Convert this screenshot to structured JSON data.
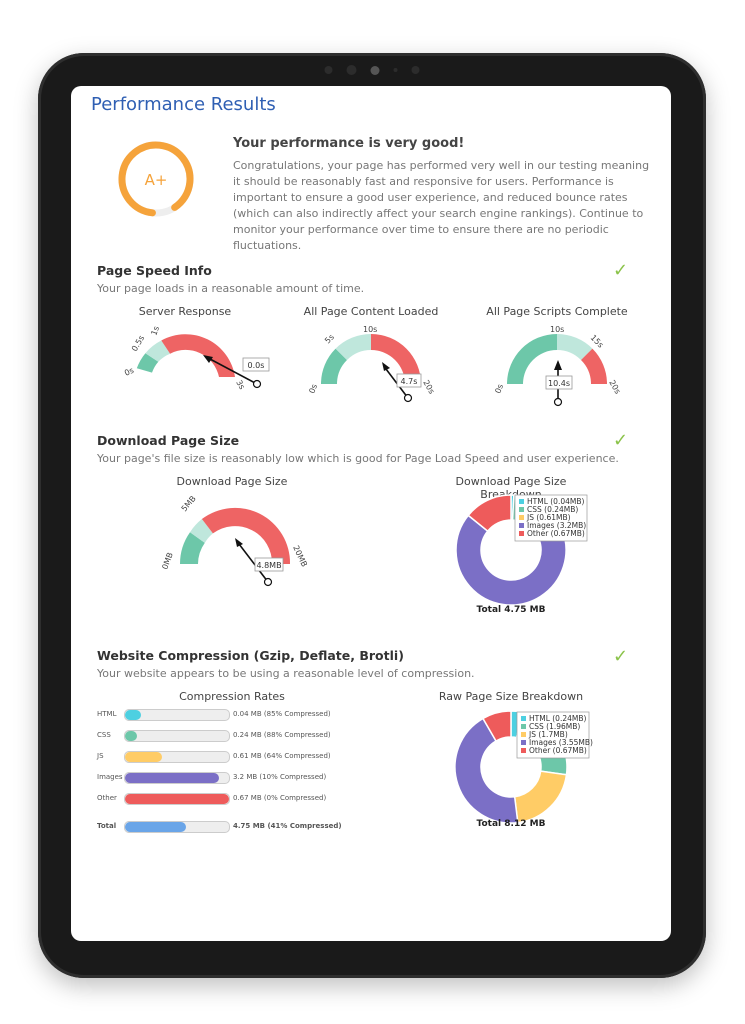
{
  "page": {
    "title": "Performance Results"
  },
  "grade": {
    "value": "A+",
    "heading": "Your performance is very good!",
    "description": "Congratulations, your page has performed very well in our testing meaning it should be reasonably fast and responsive for users. Performance is important to ensure a good user experience, and reduced bounce rates (which can also indirectly affect your search engine rankings). Continue to monitor your performance over time to ensure there are no periodic fluctuations."
  },
  "speed": {
    "heading": "Page Speed Info",
    "description": "Your page loads in a reasonable amount of time.",
    "gauges": [
      {
        "title": "Server Response",
        "value": "0.0s",
        "ticks": [
          "0s",
          "0.5s",
          "1s",
          "3s"
        ]
      },
      {
        "title": "All Page Content Loaded",
        "value": "4.7s",
        "ticks": [
          "0s",
          "5s",
          "10s",
          "20s"
        ]
      },
      {
        "title": "All Page Scripts Complete",
        "value": "10.4s",
        "ticks": [
          "0s",
          "10s",
          "15s",
          "20s"
        ]
      }
    ]
  },
  "download": {
    "heading": "Download Page Size",
    "description": "Your page's file size is reasonably low which is good for Page Load Speed and user experience.",
    "gauge": {
      "title": "Download Page Size",
      "value": "4.8MB",
      "ticks": [
        "0MB",
        "5MB",
        "20MB"
      ]
    },
    "donut": {
      "title": "Download Page Size Breakdown",
      "total": "Total 4.75 MB",
      "legend": [
        "HTML (0.04MB)",
        "CSS (0.24MB)",
        "JS (0.61MB)",
        "Images (3.2MB)",
        "Other (0.67MB)"
      ]
    }
  },
  "compression": {
    "heading": "Website Compression (Gzip, Deflate, Brotli)",
    "description": "Your website appears to be using a reasonable level of compression.",
    "rates_title": "Compression Rates",
    "rows": [
      {
        "label": "HTML",
        "text": "0.04 MB (85% Compressed)",
        "fill": 0.15,
        "color": "#4dd0e1"
      },
      {
        "label": "CSS",
        "text": "0.24 MB (88% Compressed)",
        "fill": 0.12,
        "color": "#6dc7a9"
      },
      {
        "label": "JS",
        "text": "0.61 MB (64% Compressed)",
        "fill": 0.36,
        "color": "#ffcc66"
      },
      {
        "label": "Images",
        "text": "3.2 MB (10% Compressed)",
        "fill": 0.9,
        "color": "#7b6fc6"
      },
      {
        "label": "Other",
        "text": "0.67 MB (0% Compressed)",
        "fill": 1.0,
        "color": "#ee5b5b"
      }
    ],
    "total": {
      "label": "Total",
      "text": "4.75 MB (41% Compressed)",
      "fill": 0.59,
      "color": "#6aa5e8"
    },
    "donut": {
      "title": "Raw Page Size Breakdown",
      "total": "Total 8.12 MB",
      "legend": [
        "HTML (0.24MB)",
        "CSS (1.96MB)",
        "JS (1.7MB)",
        "Images (3.55MB)",
        "Other (0.67MB)"
      ]
    }
  },
  "colors": {
    "html": "#4dd0e1",
    "css": "#6dc7a9",
    "js": "#ffcc66",
    "images": "#7b6fc6",
    "other": "#ee5b5b",
    "check": "#8bc34a",
    "title": "#2f5fb3"
  }
}
